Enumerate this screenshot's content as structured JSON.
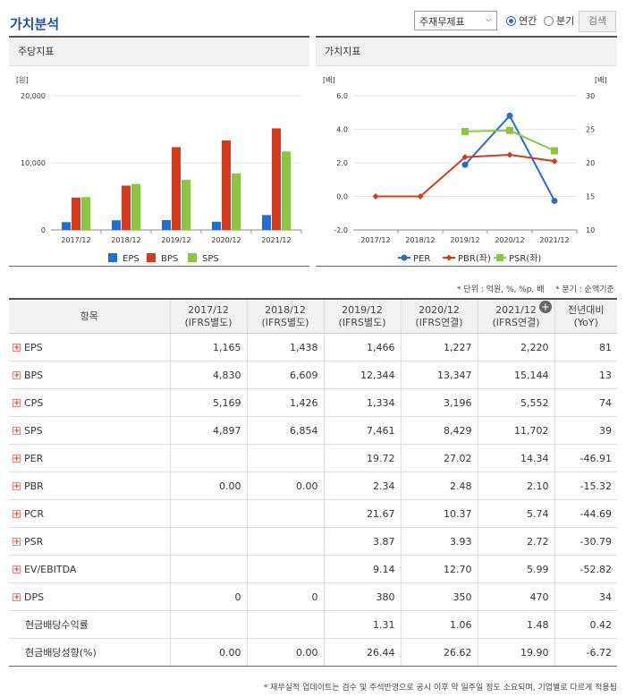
{
  "header": {
    "title": "가치분석",
    "select_value": "주재무제표",
    "radio_annual": "연간",
    "radio_quarter": "분기",
    "search_label": "검색"
  },
  "left_panel": {
    "title": "주당지표"
  },
  "right_panel": {
    "title": "가치지표"
  },
  "colors": {
    "eps": "#1f6fd6",
    "bps": "#d63a1c",
    "sps": "#8cc63f",
    "per": "#2a6ad4",
    "pbr": "#d63a1c",
    "psr": "#8cc63f"
  },
  "chart_data": [
    {
      "type": "bar",
      "categories": [
        "2017/12",
        "2018/12",
        "2019/12",
        "2020/12",
        "2021/12"
      ],
      "series": [
        {
          "name": "EPS",
          "values": [
            1165,
            1438,
            1466,
            1227,
            2220
          ]
        },
        {
          "name": "BPS",
          "values": [
            4830,
            6609,
            12344,
            13347,
            15144
          ]
        },
        {
          "name": "SPS",
          "values": [
            4897,
            6854,
            7461,
            8429,
            11702
          ]
        }
      ],
      "ylabel": "[원]",
      "ylim": [
        0,
        20000
      ],
      "yticks": [
        "20,000",
        "10,000",
        "0"
      ]
    },
    {
      "type": "line",
      "categories": [
        "2017/12",
        "2018/12",
        "2019/12",
        "2020/12",
        "2021/12"
      ],
      "series": [
        {
          "name": "PER",
          "axis": "right",
          "values": [
            null,
            null,
            19.72,
            27.02,
            14.34
          ]
        },
        {
          "name": "PBR(좌)",
          "axis": "left",
          "values": [
            0.0,
            0.0,
            2.34,
            2.48,
            2.1
          ]
        },
        {
          "name": "PSR(좌)",
          "axis": "left",
          "values": [
            null,
            null,
            3.87,
            3.93,
            2.72
          ]
        }
      ],
      "ylabel_left": "[배]",
      "ylabel_right": "[배]",
      "ylim_left": [
        -2.0,
        6.0
      ],
      "ylim_right": [
        10,
        30
      ],
      "yticks_left": [
        "6.0",
        "4.0",
        "2.0",
        "0.0",
        "-2.0"
      ],
      "yticks_right": [
        "30",
        "25",
        "20",
        "15",
        "10"
      ]
    }
  ],
  "table": {
    "note_unit": "* 단위 : 억원, %, %p, 배",
    "note_quarter": "* 분기 : 순액기준",
    "headers": {
      "item": "항목",
      "y2017": "2017/12",
      "y2017_sub": "(IFRS별도)",
      "y2018": "2018/12",
      "y2018_sub": "(IFRS별도)",
      "y2019": "2019/12",
      "y2019_sub": "(IFRS별도)",
      "y2020": "2020/12",
      "y2020_sub": "(IFRS연결)",
      "y2021": "2021/12",
      "y2021_sub": "(IFRS연결)",
      "yoy": "전년대비",
      "yoy_sub": "(YoY)"
    },
    "rows": [
      {
        "label": "EPS",
        "v": [
          "1,165",
          "1,438",
          "1,466",
          "1,227",
          "2,220",
          "81"
        ]
      },
      {
        "label": "BPS",
        "v": [
          "4,830",
          "6,609",
          "12,344",
          "13,347",
          "15,144",
          "13"
        ]
      },
      {
        "label": "CPS",
        "v": [
          "5,169",
          "1,426",
          "1,334",
          "3,196",
          "5,552",
          "74"
        ]
      },
      {
        "label": "SPS",
        "v": [
          "4,897",
          "6,854",
          "7,461",
          "8,429",
          "11,702",
          "39"
        ]
      },
      {
        "label": "PER",
        "v": [
          "",
          "",
          "19.72",
          "27.02",
          "14.34",
          "-46.91"
        ]
      },
      {
        "label": "PBR",
        "v": [
          "0.00",
          "0.00",
          "2.34",
          "2.48",
          "2.10",
          "-15.32"
        ]
      },
      {
        "label": "PCR",
        "v": [
          "",
          "",
          "21.67",
          "10.37",
          "5.74",
          "-44.69"
        ]
      },
      {
        "label": "PSR",
        "v": [
          "",
          "",
          "3.87",
          "3.93",
          "2.72",
          "-30.79"
        ]
      },
      {
        "label": "EV/EBITDA",
        "v": [
          "",
          "",
          "9.14",
          "12.70",
          "5.99",
          "-52.82"
        ]
      },
      {
        "label": "DPS",
        "v": [
          "0",
          "0",
          "380",
          "350",
          "470",
          "34"
        ]
      },
      {
        "label": "현금배당수익률",
        "v": [
          "",
          "",
          "1.31",
          "1.06",
          "1.48",
          "0.42"
        ]
      },
      {
        "label": "현금배당성향(%)",
        "v": [
          "0.00",
          "0.00",
          "26.44",
          "26.62",
          "19.90",
          "-6.72"
        ]
      }
    ],
    "footnote": "* 재무실적 업데이트는 검수 및 주석반영으로 공시 이후 약 일주일 정도 소요되며, 기업별로 다르게 적용됩"
  }
}
